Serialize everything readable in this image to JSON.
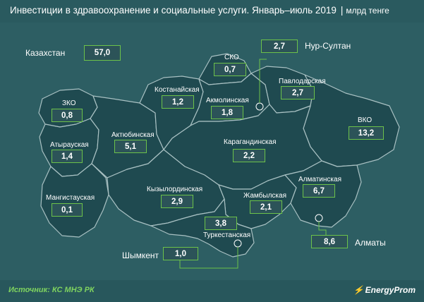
{
  "header": {
    "title": "Инвестиции в здравоохранение и социальные услуги. Январь–июль 2019",
    "separator": "|",
    "unit": "млрд тенге"
  },
  "national": {
    "label": "Казахстан",
    "value": "57,0"
  },
  "regions": {
    "zko": {
      "label": "ЗКО",
      "value": "0,8"
    },
    "atyrau": {
      "label": "Атырауская",
      "value": "1,4"
    },
    "mangystau": {
      "label": "Мангистауская",
      "value": "0,1"
    },
    "aktobe": {
      "label": "Актюбинская",
      "value": "5,1"
    },
    "kostanay": {
      "label": "Костанайская",
      "value": "1,2"
    },
    "sko": {
      "label": "СКО",
      "value": "0,7"
    },
    "nursultan": {
      "label": "Нур-Султан",
      "value": "2,7"
    },
    "pavlodar": {
      "label": "Павлодарская",
      "value": "2,7"
    },
    "akmola": {
      "label": "Акмолинская",
      "value": "1,8"
    },
    "vko": {
      "label": "ВКО",
      "value": "13,2"
    },
    "karaganda": {
      "label": "Карагандинская",
      "value": "2,2"
    },
    "kyzylorda": {
      "label": "Кызылординская",
      "value": "2,9"
    },
    "almaty_obl": {
      "label": "Алматинская",
      "value": "6,7"
    },
    "zhambyl": {
      "label": "Жамбылская",
      "value": "2,1"
    },
    "turkestan": {
      "label": "Туркестанская",
      "value": "3,8"
    },
    "shymkent": {
      "label": "Шымкент",
      "value": "1,0"
    },
    "almaty": {
      "label": "Алматы",
      "value": "8,6"
    }
  },
  "footer": {
    "source": "Источник: КС МНЭ РК",
    "brand": "EnergyProm"
  },
  "colors": {
    "background": "#2d5e63",
    "region_fill": "#1f4a50",
    "region_border": "#a9c1c3",
    "box_border": "#6cc24a",
    "source_text": "#7fd35f"
  }
}
